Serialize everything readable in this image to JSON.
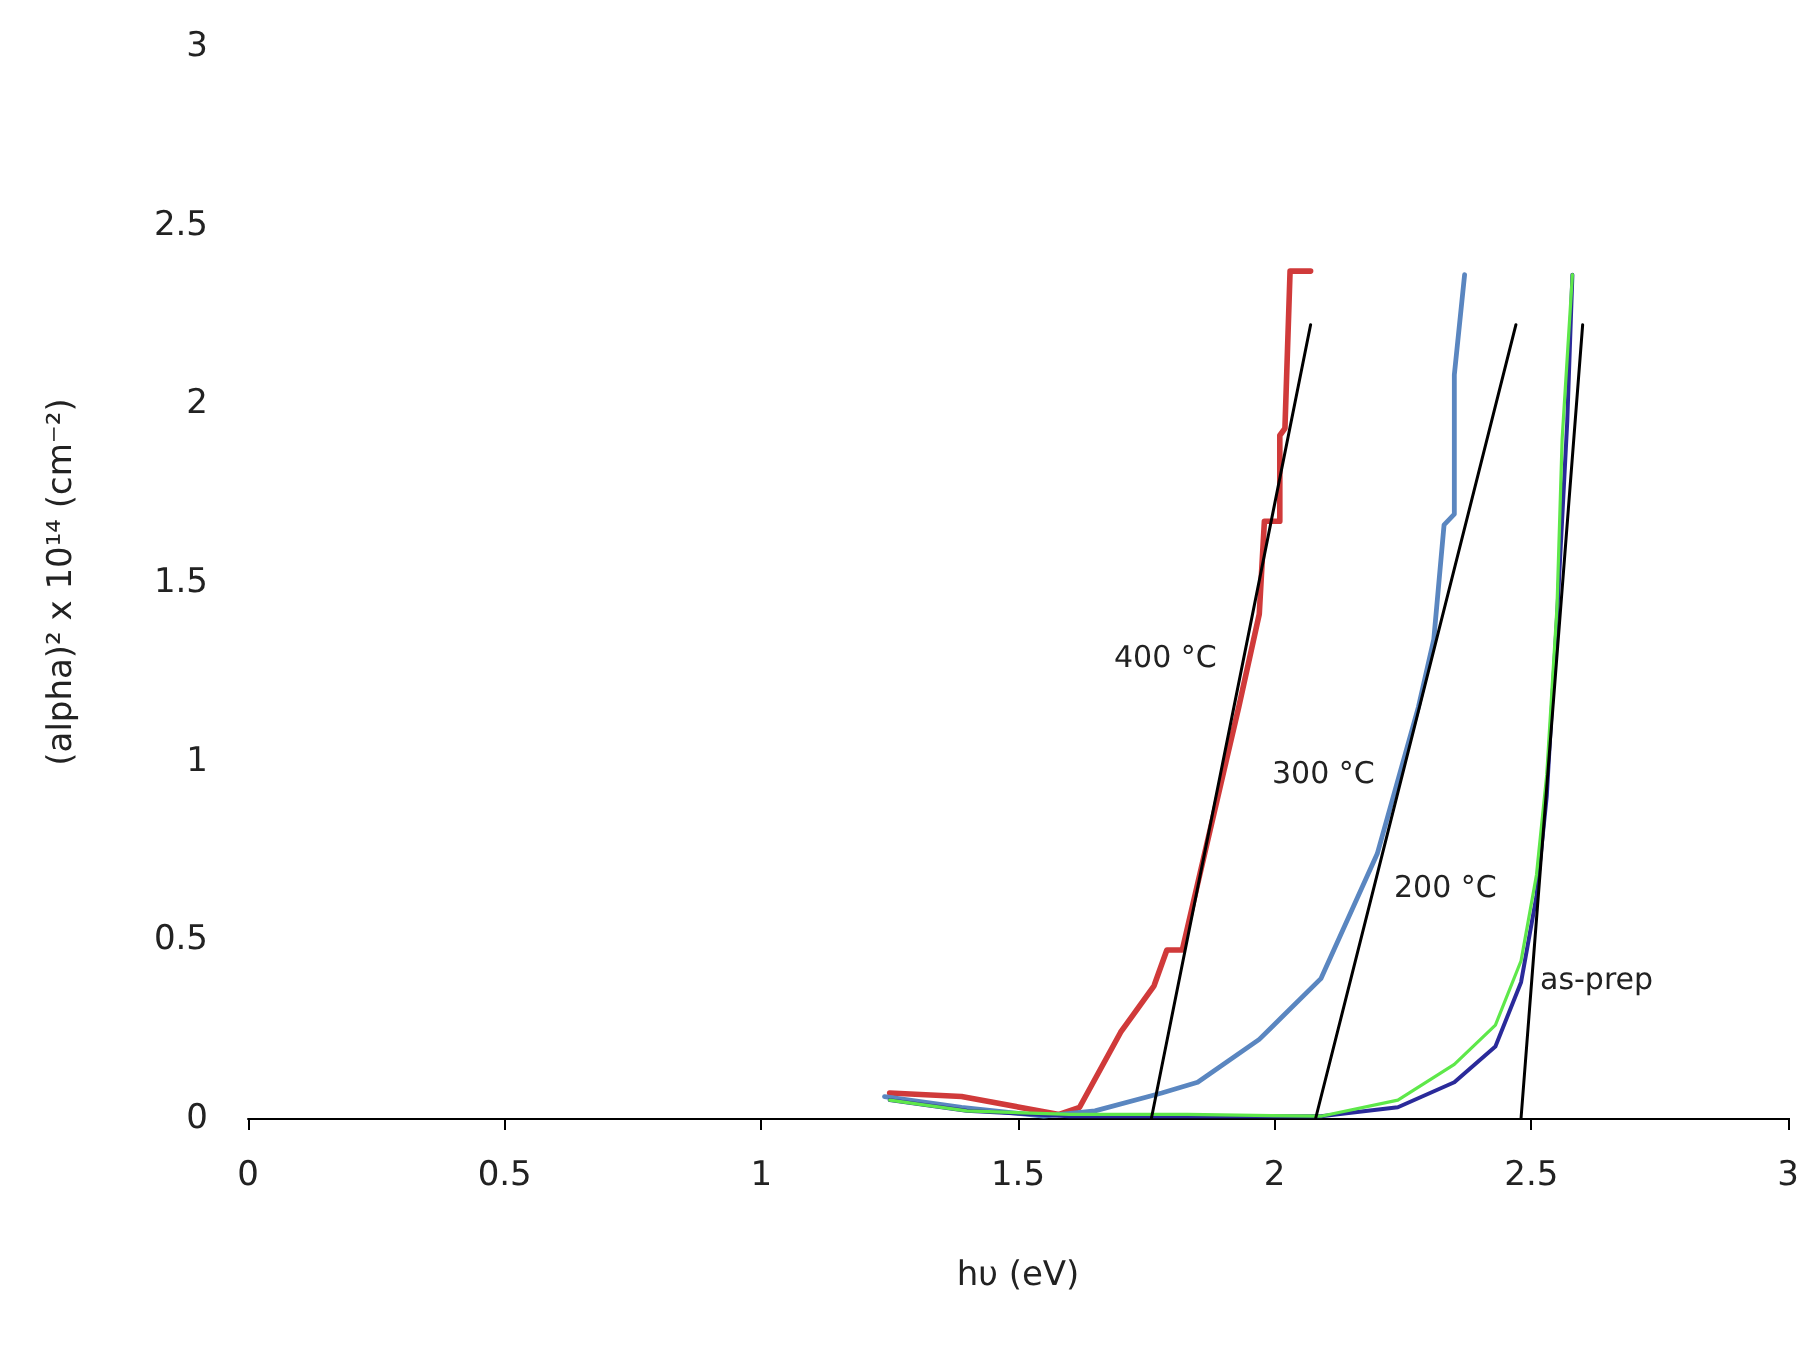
{
  "chart_data": {
    "type": "line",
    "xlabel": "hυ (eV)",
    "ylabel": "(alpha)² x 10¹⁴ (cm⁻²)",
    "xlim": [
      0,
      3
    ],
    "xticks": [
      0,
      0.5,
      1,
      1.5,
      2,
      2.5,
      3
    ],
    "ylim": [
      0,
      3
    ],
    "yticks": [
      0,
      0.5,
      1,
      1.5,
      2,
      2.5,
      3
    ],
    "grid": false,
    "marker": "none",
    "line_style": "solid",
    "series": [
      {
        "color": "#d03a3a",
        "x": [
          1.25,
          1.39,
          1.58,
          1.62,
          1.7,
          1.765,
          1.79,
          1.82,
          1.87,
          1.93,
          1.97,
          1.98,
          2.01,
          2.01,
          2.02,
          2.03,
          2.07
        ],
        "values": [
          0.07,
          0.06,
          0.01,
          0.03,
          0.24,
          0.37,
          0.47,
          0.47,
          0.78,
          1.15,
          1.41,
          1.67,
          1.67,
          1.91,
          1.93,
          2.37,
          2.37
        ]
      },
      {
        "color": "#5a86c0",
        "x": [
          1.24,
          1.39,
          1.55,
          1.65,
          1.78,
          1.85,
          1.97,
          2.09,
          2.2,
          2.28,
          2.31,
          2.33,
          2.35,
          2.35,
          2.37
        ],
        "values": [
          0.06,
          0.03,
          0.005,
          0.02,
          0.07,
          0.1,
          0.22,
          0.39,
          0.74,
          1.15,
          1.34,
          1.66,
          1.69,
          2.08,
          2.36
        ]
      },
      {
        "color": "#2a2a9a",
        "x": [
          1.25,
          1.4,
          1.6,
          1.85,
          2.09,
          2.24,
          2.35,
          2.43,
          2.48,
          2.51,
          2.53,
          2.55,
          2.57,
          2.58
        ],
        "values": [
          0.05,
          0.02,
          0.005,
          0.005,
          0.005,
          0.03,
          0.1,
          0.2,
          0.38,
          0.62,
          0.9,
          1.4,
          1.95,
          2.36
        ]
      },
      {
        "color": "#5ee84a",
        "x": [
          1.25,
          1.4,
          1.6,
          1.83,
          2.09,
          2.24,
          2.35,
          2.43,
          2.48,
          2.51,
          2.53,
          2.55,
          2.56,
          2.58
        ],
        "values": [
          0.05,
          0.02,
          0.01,
          0.01,
          0.005,
          0.05,
          0.15,
          0.26,
          0.44,
          0.68,
          0.96,
          1.43,
          1.9,
          2.36
        ]
      },
      {
        "color": "#000000",
        "x": [
          1.76,
          2.07
        ],
        "values": [
          0,
          2.22
        ]
      },
      {
        "color": "#000000",
        "x": [
          2.08,
          2.47
        ],
        "values": [
          0,
          2.22
        ]
      },
      {
        "color": "#000000",
        "x": [
          2.48,
          2.6
        ],
        "values": [
          0,
          2.22
        ]
      }
    ],
    "annotations": [
      "400 °C",
      "300 °C",
      "200 °C",
      "as-prep"
    ]
  }
}
